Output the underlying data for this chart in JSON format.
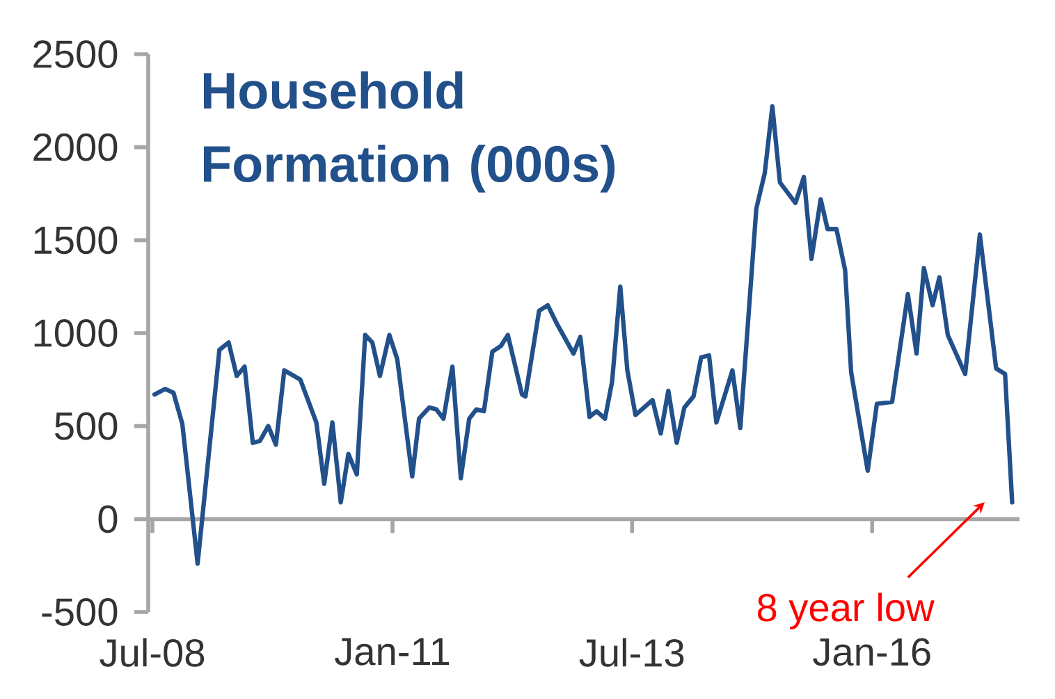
{
  "chart_data": {
    "type": "line",
    "title": "Household Formation (000s)",
    "x": [
      "2008-07-09",
      "2008-08-18",
      "2008-09-19",
      "2008-10-23",
      "2008-12-20",
      "2009-03-13",
      "2009-04-17",
      "2009-05-18",
      "2009-06-17",
      "2009-07-18",
      "2009-08-14",
      "2009-09-15",
      "2009-10-14",
      "2009-11-15",
      "2010-01-15",
      "2010-03-17",
      "2010-04-16",
      "2010-05-17",
      "2010-06-18",
      "2010-07-17",
      "2010-08-18",
      "2010-09-19",
      "2010-10-16",
      "2010-11-14",
      "2010-12-20",
      "2011-01-19",
      "2011-03-17",
      "2011-04-12",
      "2011-05-21",
      "2011-06-17",
      "2011-07-14",
      "2011-08-17",
      "2011-09-18",
      "2011-10-20",
      "2011-11-16",
      "2011-12-15",
      "2012-01-16",
      "2012-02-17",
      "2012-03-15",
      "2012-05-08",
      "2012-05-21",
      "2012-07-12",
      "2012-08-14",
      "2012-09-18",
      "2012-11-20",
      "2012-12-16",
      "2013-01-20",
      "2013-02-16",
      "2013-03-20",
      "2013-04-16",
      "2013-05-17",
      "2013-06-13",
      "2013-07-14",
      "2013-09-17",
      "2013-10-18",
      "2013-11-16",
      "2013-12-18",
      "2014-01-16",
      "2014-02-20",
      "2014-03-21",
      "2014-04-20",
      "2014-05-18",
      "2014-07-18",
      "2014-08-17",
      "2014-10-17",
      "2014-11-18",
      "2014-12-17",
      "2015-01-15",
      "2015-03-15",
      "2015-04-16",
      "2015-05-15",
      "2015-06-19",
      "2015-07-15",
      "2015-08-18",
      "2015-09-20",
      "2015-10-13",
      "2015-12-15",
      "2016-01-19",
      "2016-03-17",
      "2016-05-16",
      "2016-06-18",
      "2016-07-16",
      "2016-08-18",
      "2016-09-13",
      "2016-10-15",
      "2016-12-20",
      "2017-02-14",
      "2017-04-17",
      "2017-05-21",
      "2017-06-17"
    ],
    "series": [
      {
        "color": "#22508a",
        "values": [
          670,
          700,
          680,
          510,
          -240,
          910,
          950,
          770,
          820,
          410,
          420,
          500,
          400,
          800,
          750,
          520,
          190,
          520,
          90,
          350,
          240,
          990,
          950,
          770,
          990,
          860,
          230,
          540,
          600,
          590,
          540,
          820,
          220,
          540,
          590,
          580,
          900,
          930,
          990,
          670,
          660,
          1120,
          1150,
          1050,
          890,
          980,
          550,
          580,
          540,
          740,
          1250,
          800,
          560,
          640,
          460,
          690,
          410,
          600,
          660,
          870,
          880,
          520,
          800,
          490,
          1670,
          1860,
          2220,
          1810,
          1700,
          1840,
          1400,
          1720,
          1560,
          1560,
          1340,
          790,
          260,
          620,
          630,
          1210,
          890,
          1350,
          1150,
          1300,
          990,
          780,
          1530,
          810,
          780,
          90
        ]
      }
    ],
    "xlim": [
      "2008-06-15",
      "2017-07-15"
    ],
    "xticks": [
      {
        "value": "2008-07-01",
        "label": "Jul-08"
      },
      {
        "value": "2011-01-01",
        "label": "Jan-11"
      },
      {
        "value": "2013-07-01",
        "label": "Jul-13"
      },
      {
        "value": "2016-01-01",
        "label": "Jan-16"
      }
    ],
    "ylim": [
      -500,
      2500
    ],
    "yticks": [
      -500,
      0,
      500,
      1000,
      1500,
      2000,
      2500
    ],
    "ref_lines": [
      {
        "axis": "y",
        "value": 0,
        "color": "#a6a6a6"
      }
    ],
    "annotations": [
      "8 year low"
    ]
  }
}
